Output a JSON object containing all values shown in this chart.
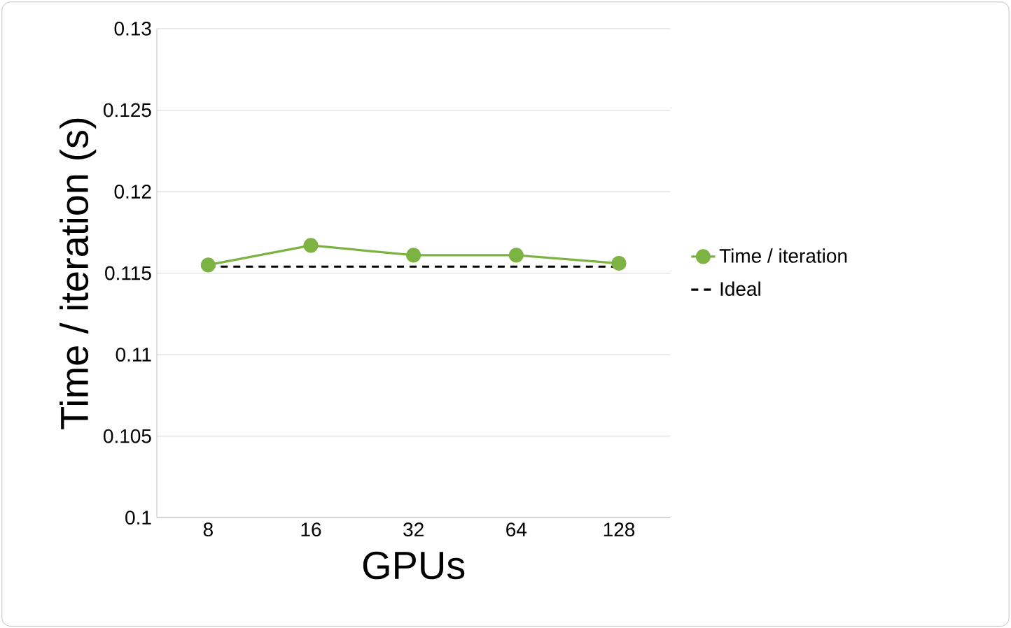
{
  "chart_data": {
    "type": "line",
    "xlabel": "GPUs",
    "ylabel": "Time / iteration (s)",
    "categories": [
      "8",
      "16",
      "32",
      "64",
      "128"
    ],
    "series": [
      {
        "name": "Time / iteration",
        "color": "#7cb342",
        "values": [
          0.1155,
          0.1167,
          0.1161,
          0.1161,
          0.1156
        ],
        "marker": "circle",
        "line_style": "solid"
      },
      {
        "name": "Ideal",
        "color": "#000000",
        "values": [
          0.1154,
          0.1154,
          0.1154,
          0.1154,
          0.1154
        ],
        "marker": "none",
        "line_style": "dashed"
      }
    ],
    "ylim": [
      0.1,
      0.13
    ],
    "yticks": [
      0.1,
      0.105,
      0.11,
      0.115,
      0.12,
      0.125,
      0.13
    ],
    "grid": "y",
    "legend": "right"
  }
}
